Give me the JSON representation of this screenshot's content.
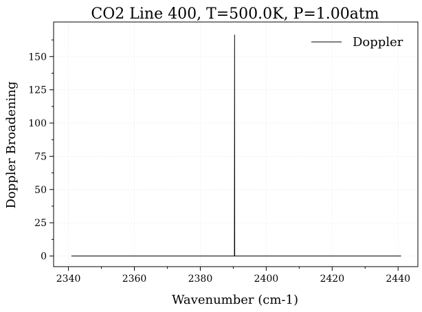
{
  "chart_data": {
    "type": "line",
    "title": "CO2 Line 400, T=500.0K, P=1.00atm",
    "xlabel": "Wavenumber (cm-1)",
    "ylabel": "Doppler Broadening",
    "xlim": [
      2335.5,
      2446
    ],
    "ylim": [
      -8,
      176
    ],
    "x_ticks": [
      2340,
      2360,
      2380,
      2400,
      2420,
      2440
    ],
    "y_ticks": [
      0,
      25,
      50,
      75,
      100,
      125,
      150
    ],
    "grid": true,
    "legend_position": "top-right",
    "series": [
      {
        "name": "Doppler",
        "color": "#000000",
        "x": [
          2340.9,
          2390.35,
          2390.4,
          2390.45,
          2440.9
        ],
        "y": [
          0,
          0,
          166.5,
          0,
          0
        ]
      }
    ]
  }
}
